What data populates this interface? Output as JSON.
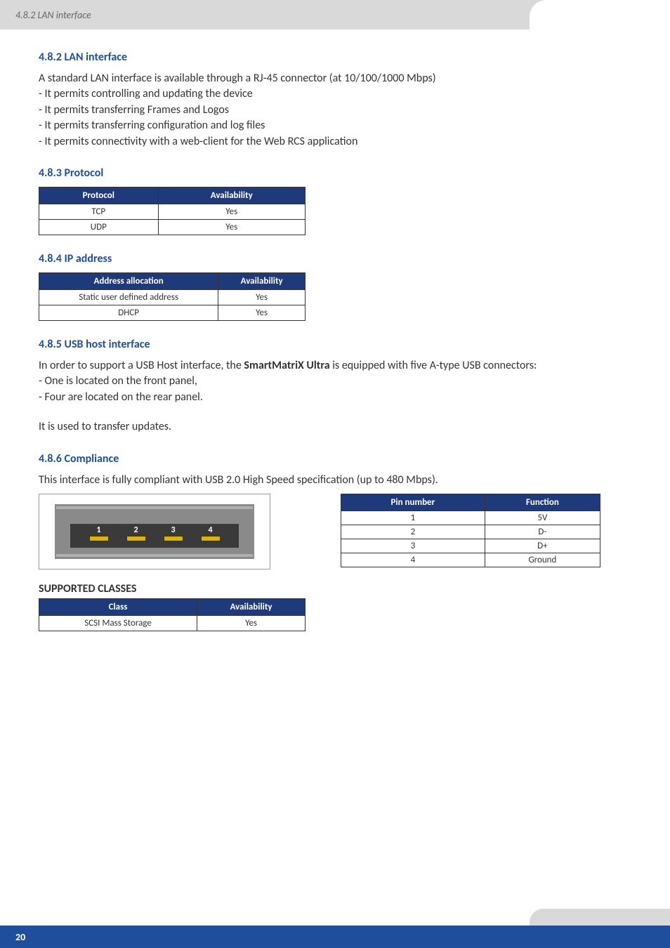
{
  "header": {
    "breadcrumb": "4.8.2 LAN interface"
  },
  "sections": {
    "lan": {
      "heading": "4.8.2 LAN interface",
      "intro": "A standard LAN interface is available through a RJ-45 connector (at 10/100/1000 Mbps)",
      "bullets": [
        "- It permits controlling and updating the device",
        "- It permits transferring Frames and Logos",
        "- It permits transferring configuration and log files",
        "- It permits connectivity with a web-client for the Web RCS application"
      ]
    },
    "protocol": {
      "heading": "4.8.3 Protocol",
      "table": {
        "columns": [
          "Protocol",
          "Availability"
        ],
        "rows": [
          [
            "TCP",
            "Yes"
          ],
          [
            "UDP",
            "Yes"
          ]
        ]
      }
    },
    "ip": {
      "heading": "4.8.4 IP address",
      "table": {
        "columns": [
          "Address allocation",
          "Availability"
        ],
        "rows": [
          [
            "Static user defined address",
            "Yes"
          ],
          [
            "DHCP",
            "Yes"
          ]
        ]
      }
    },
    "usb": {
      "heading": "4.8.5 USB host interface",
      "intro_pre": "In order to support a USB Host interface, the ",
      "intro_bold": "SmartMatriX Ultra",
      "intro_post": " is equipped with five A-type USB connectors:",
      "bullets": [
        "- One is located on the front panel,",
        "- Four are located on the rear panel."
      ],
      "note": "It is used to transfer updates."
    },
    "compliance": {
      "heading": "4.8.6 Compliance",
      "text": "This interface is fully compliant with USB 2.0 High Speed specification (up to 480 Mbps).",
      "diagram_pins": [
        "1",
        "2",
        "3",
        "4"
      ],
      "pin_table": {
        "columns": [
          "Pin number",
          "Function"
        ],
        "rows": [
          [
            "1",
            "5V"
          ],
          [
            "2",
            "D-"
          ],
          [
            "3",
            "D+"
          ],
          [
            "4",
            "Ground"
          ]
        ]
      }
    },
    "classes": {
      "heading": "SUPPORTED CLASSES",
      "table": {
        "columns": [
          "Class",
          "Availability"
        ],
        "rows": [
          [
            "SCSI Mass Storage",
            "Yes"
          ]
        ]
      }
    }
  },
  "footer": {
    "page": "20"
  },
  "style": {
    "heading_color": "#1f4e9c",
    "table_header_bg": "#1f3a7a",
    "table_header_fg": "#ffffff",
    "header_bg": "#d9d9d9",
    "footer_bg": "#1f4e9c",
    "usb_contact_color": "#dcb400"
  }
}
